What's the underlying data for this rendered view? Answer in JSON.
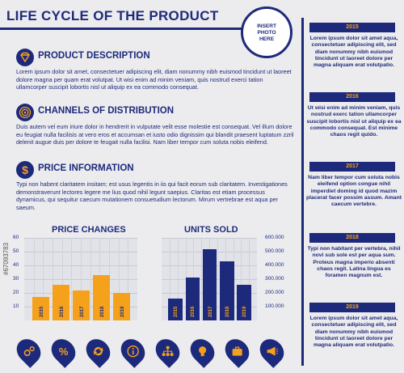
{
  "header": {
    "title": "LIFE CYCLE OF THE PRODUCT",
    "photo_label_1": "INSERT",
    "photo_label_2": "PHOTO",
    "photo_label_3": "HERE"
  },
  "sections": [
    {
      "title": "PRODUCT DESCRIPTION",
      "icon": "diamond-icon",
      "text": "Lorem ipsum dolor sit amet, consectetuer adipiscing elit, diam nonummy nibh euismod tincidunt ut laoreet dolore magna per quam erat volutpat. Ut wisi enim ad minim veniam, quis nostrud exerci tation ullamcorper suscipit lobortis nisl ut aliquip ex ea commodo consequat."
    },
    {
      "title": "CHANNELS OF DISTRIBUTION",
      "icon": "target-icon",
      "text": "Duis autem vel eum iriure dolor in hendrerit in vulputate velit esse molestie est consequat. Vel illum dolore eu feugiat nulla facilisis at vero eros et accumsan et iusto odio dignissim qui blandit praesent luptatum zzril delenit augue duis per dolore te feugait nulla facilisi. Nam liber tempor cum soluta nobis eleifend."
    },
    {
      "title": "PRICE INFORMATION",
      "icon": "dollar-icon",
      "text": "Typi non habent claritatem insitam; est usus legentis in iis qui facit eorum sub claritatem. Investigationes demonstraverunt lectores legere me lius quod nihil legunt saepius. Claritas est etiam processus dynamicus, qui sequitur caecum mutationem consuetudium lectorum. Mirum vertrebrae est aqua per saeum."
    }
  ],
  "price_chart": {
    "title": "PRICE CHANGES",
    "y_ticks": [
      "60",
      "50",
      "40",
      "30",
      "20",
      "10"
    ],
    "color": "#f6a11c"
  },
  "units_chart": {
    "title": "UNITS SOLD",
    "y_ticks": [
      "600.000",
      "500.000",
      "400.000",
      "300.000",
      "200.000",
      "100.000"
    ],
    "color": "#1d2a7c"
  },
  "chart_data": [
    {
      "type": "bar",
      "title": "PRICE CHANGES",
      "categories": [
        "2015",
        "2016",
        "2017",
        "2018",
        "2019"
      ],
      "values": [
        17,
        26,
        22,
        33,
        20
      ],
      "ylim": [
        0,
        60
      ]
    },
    {
      "type": "bar",
      "title": "UNITS SOLD",
      "categories": [
        "2015",
        "2016",
        "2017",
        "2018",
        "2019"
      ],
      "values": [
        160000,
        310000,
        520000,
        430000,
        260000
      ],
      "ylim": [
        0,
        600000
      ]
    }
  ],
  "timeline": [
    {
      "year": "2015",
      "text": "Lorem ipsum dolor sit amet aqua, consectetuer adipiscing elit, sed diam nonummy nibh euismod tincidunt ut laoreet dolore per magna aliquam erat volutpatio."
    },
    {
      "year": "2016",
      "text": "Ut wisi enim ad minim veniam, quis nostrud exerc tation ullamcorper suscipit lobortis nisl ut aliquip ex ea commodo consequat. Est minime chaos regit quido."
    },
    {
      "year": "2017",
      "text": "Nam liber tempor cum soluta nobis eleifend option congue nihil imperdiet doming id quod mazim placerat facer possim assum.  Amant caecum vertebre."
    },
    {
      "year": "2018",
      "text": "Typi non habitant per vertebra, nihil novi sub sole est per aqua sum. Proteus magna imperio absenti chaos regit. Latina lingua es foramen magnum est."
    },
    {
      "year": "2019",
      "text": "Lorem ipsum dolor sit amet aqua, consectetuer adipiscing elit, sed diam nonummy nibh euismod tincidunt ut laoreet dolore per magna aliquam erat volutpatio."
    }
  ],
  "bottom_icons": [
    "gears-icon",
    "percent-icon",
    "recycle-icon",
    "info-icon",
    "network-icon",
    "lightbulb-icon",
    "briefcase-icon",
    "megaphone-icon"
  ],
  "stock_id": "#67093783"
}
